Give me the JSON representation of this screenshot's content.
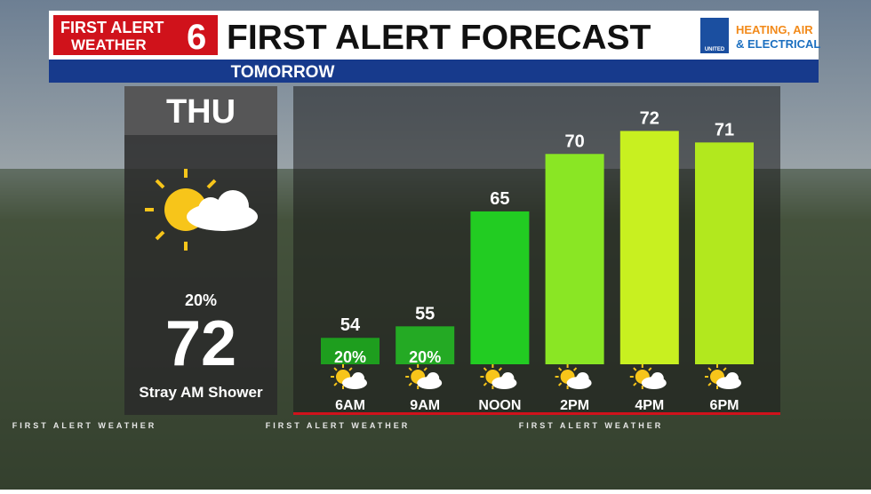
{
  "header": {
    "logo_line1": "FIRST ALERT",
    "logo_line2": "WEATHER",
    "logo_number": "6",
    "title": "FIRST ALERT FORECAST",
    "sponsor_logo": "UNITED",
    "sponsor_line1": "HEATING, AIR",
    "sponsor_line2": "& ELECTRICAL",
    "subtitle": "TOMORROW"
  },
  "day_panel": {
    "day": "THU",
    "rain_chance": "20%",
    "high": 72,
    "description": "Stray AM Shower"
  },
  "chart_data": {
    "type": "bar",
    "categories": [
      "6AM",
      "9AM",
      "NOON",
      "2PM",
      "4PM",
      "6PM"
    ],
    "values": [
      54,
      55,
      65,
      70,
      72,
      71
    ],
    "precip_labels": [
      "20%",
      "20%",
      null,
      null,
      null,
      null
    ],
    "colors": [
      "#1e9e1e",
      "#24aa24",
      "#22cc22",
      "#8ae624",
      "#c8f020",
      "#b2e81e"
    ],
    "ylim": [
      51.7,
      73.5
    ]
  },
  "footer": {
    "ticker": "FIRST ALERT WEATHER"
  }
}
